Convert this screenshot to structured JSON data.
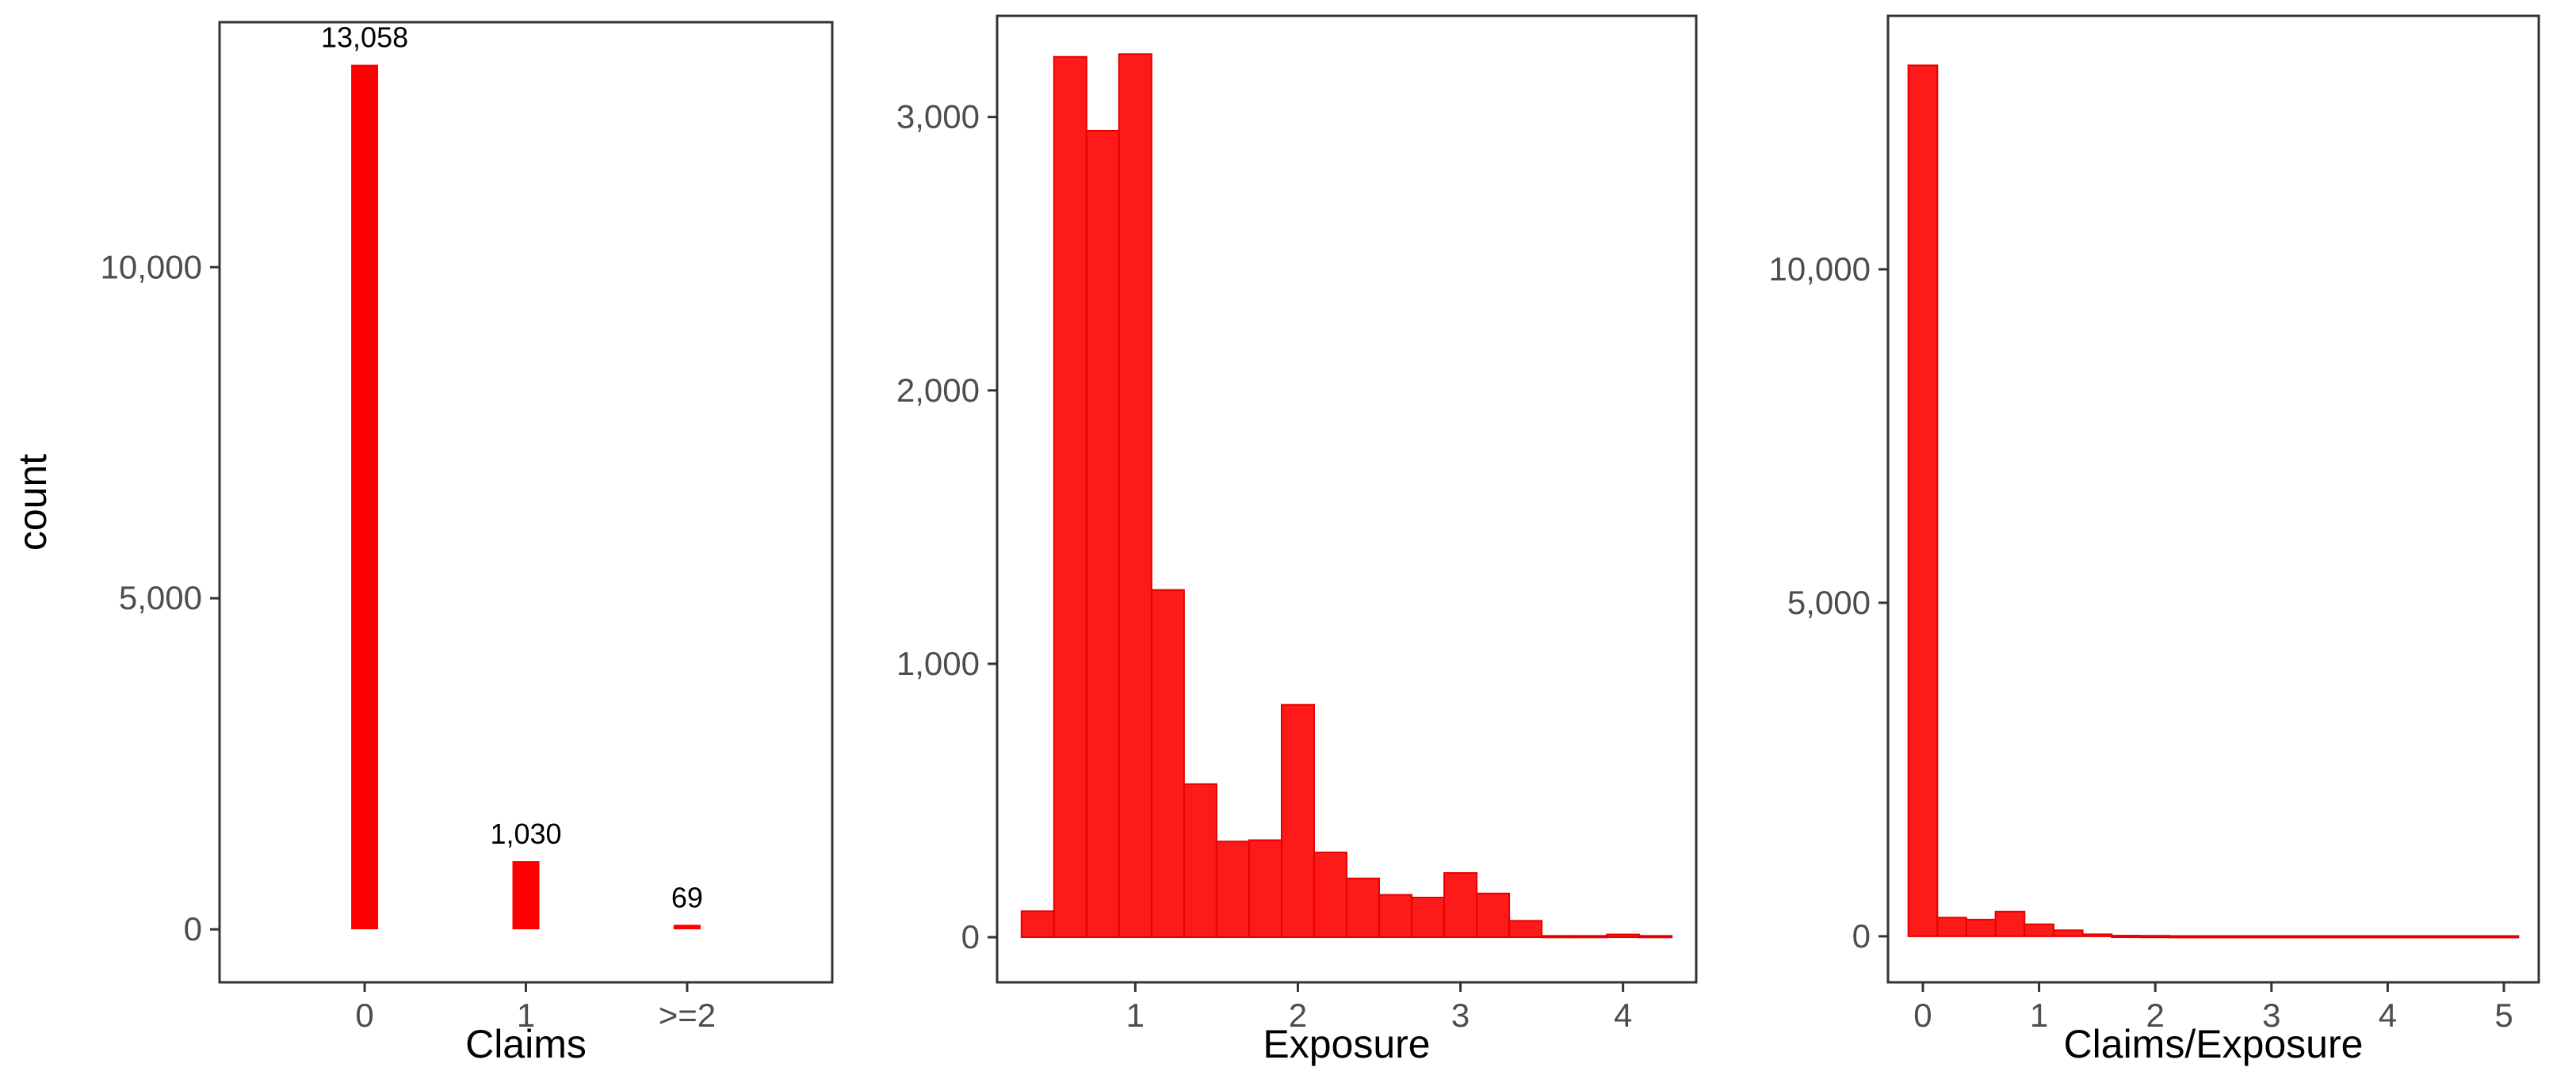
{
  "colors": {
    "bar_fill": "#ff0000",
    "hist_fill": "#ff1a1a",
    "hist_stroke": "#e60000",
    "frame": "#333333",
    "tick_text": "#4d4d4d"
  },
  "chart_data": [
    {
      "type": "bar",
      "xlabel": "Claims",
      "ylabel": "count",
      "categories": [
        "0",
        "1",
        ">=2"
      ],
      "values": [
        13058,
        1030,
        69
      ],
      "data_labels": [
        "13,058",
        "1,030",
        "69"
      ],
      "ylim": [
        -800,
        13700
      ],
      "yticks": [
        0,
        5000,
        10000
      ],
      "ytick_labels": [
        "0",
        "5,000",
        "10,000"
      ],
      "grid": false
    },
    {
      "type": "bar",
      "subtype": "histogram",
      "xlabel": "Exposure",
      "ylabel": "",
      "bin_width": 0.2,
      "bin_centers": [
        0.4,
        0.6,
        0.8,
        1.0,
        1.2,
        1.4,
        1.6,
        1.8,
        2.0,
        2.2,
        2.4,
        2.6,
        2.8,
        3.0,
        3.2,
        3.4,
        3.6,
        3.8,
        4.0,
        4.2
      ],
      "values": [
        95,
        3220,
        2950,
        3230,
        1270,
        560,
        350,
        355,
        850,
        310,
        215,
        155,
        145,
        235,
        160,
        60,
        5,
        5,
        10,
        5
      ],
      "xlim": [
        0.15,
        4.45
      ],
      "ylim": [
        -165,
        3370
      ],
      "xticks": [
        1,
        2,
        3,
        4
      ],
      "xtick_labels": [
        "1",
        "2",
        "3",
        "4"
      ],
      "yticks": [
        0,
        1000,
        2000,
        3000
      ],
      "ytick_labels": [
        "0",
        "1,000",
        "2,000",
        "3,000"
      ],
      "grid": false
    },
    {
      "type": "bar",
      "subtype": "histogram",
      "xlabel": "Claims/Exposure",
      "ylabel": "",
      "bin_width": 0.25,
      "bin_centers": [
        0.0,
        0.25,
        0.5,
        0.75,
        1.0,
        1.25,
        1.5,
        1.75,
        2.0,
        2.25,
        2.5,
        2.75,
        3.0,
        3.25,
        3.5,
        3.75,
        4.0,
        4.25,
        4.5,
        4.75,
        5.0
      ],
      "values": [
        13058,
        280,
        250,
        370,
        180,
        90,
        30,
        10,
        8,
        5,
        5,
        5,
        5,
        5,
        5,
        5,
        5,
        5,
        5,
        5,
        5
      ],
      "xlim": [
        -0.3,
        5.3
      ],
      "ylim": [
        -690,
        13800
      ],
      "xticks": [
        0,
        1,
        2,
        3,
        4,
        5
      ],
      "xtick_labels": [
        "0",
        "1",
        "2",
        "3",
        "4",
        "5"
      ],
      "yticks": [
        0,
        5000,
        10000
      ],
      "ytick_labels": [
        "0",
        "5,000",
        "10,000"
      ],
      "grid": false
    }
  ]
}
